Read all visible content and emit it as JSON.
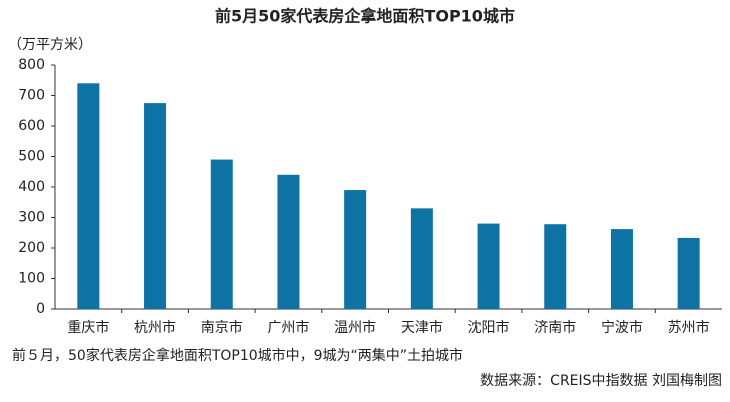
{
  "chart_data": {
    "type": "bar",
    "title": "前5月50家代表房企拿地面积TOP10城市",
    "y_label": "（万平方米）",
    "categories": [
      "重庆市",
      "杭州市",
      "南京市",
      "广州市",
      "温州市",
      "天津市",
      "沈阳市",
      "济南市",
      "宁波市",
      "苏州市"
    ],
    "values": [
      740,
      675,
      490,
      440,
      390,
      330,
      280,
      278,
      262,
      233
    ],
    "color": "#0d73a5",
    "ylim": [
      0,
      800
    ],
    "yticks": [
      0,
      100,
      200,
      300,
      400,
      500,
      600,
      700,
      800
    ],
    "grid": false,
    "note": "前５月，50家代表房企拿地面积TOP10城市中，9城为“两集中”土拍城市",
    "source": "数据来源：CREIS中指数据 刘国梅制图"
  }
}
